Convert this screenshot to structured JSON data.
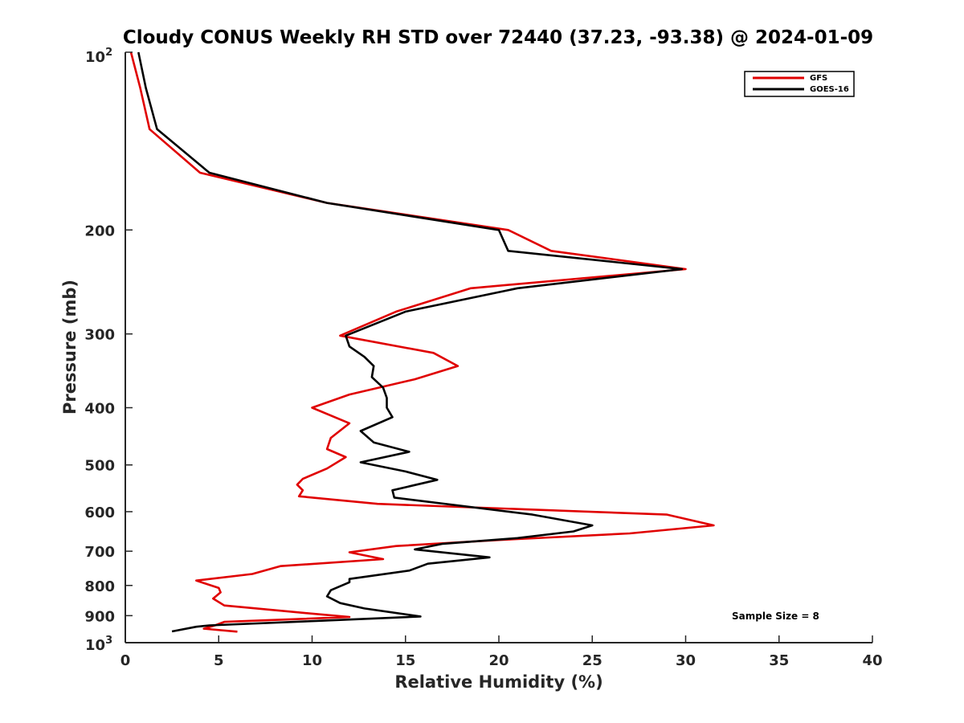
{
  "chart_data": {
    "type": "line",
    "title": "Cloudy CONUS Weekly RH STD over 72440 (37.23, -93.38) @ 2024-01-09",
    "xlabel": "Relative Humidity (%)",
    "ylabel": "Pressure (mb)",
    "xlim": [
      0,
      40
    ],
    "ylim": [
      100,
      1000
    ],
    "y_scale": "log",
    "y_reversed": true,
    "grid": false,
    "legend_position": "top-right",
    "x_ticks": [
      0,
      5,
      10,
      15,
      20,
      25,
      30,
      35,
      40
    ],
    "x_tick_labels": [
      "0",
      "5",
      "10",
      "15",
      "20",
      "25",
      "30",
      "35",
      "40"
    ],
    "y_ticks": [
      200,
      300,
      400,
      500,
      600,
      700,
      800,
      900
    ],
    "y_tick_labels": [
      "200",
      "300",
      "400",
      "500",
      "600",
      "700",
      "800",
      "900"
    ],
    "y_top_label": {
      "base": "10",
      "exp": "2"
    },
    "y_bottom_label": {
      "base": "10",
      "exp": "3"
    },
    "series": [
      {
        "name": "GFS",
        "color": "#e00000",
        "points": [
          [
            0.3,
            100
          ],
          [
            0.8,
            115
          ],
          [
            1.3,
            135
          ],
          [
            4.0,
            160
          ],
          [
            10.8,
            180
          ],
          [
            20.5,
            200
          ],
          [
            22.8,
            217
          ],
          [
            30.0,
            233
          ],
          [
            18.5,
            251
          ],
          [
            14.5,
            275
          ],
          [
            11.5,
            302
          ],
          [
            16.5,
            323
          ],
          [
            17.8,
            340
          ],
          [
            15.5,
            358
          ],
          [
            12.0,
            380
          ],
          [
            10.0,
            400
          ],
          [
            12.0,
            425
          ],
          [
            11.0,
            450
          ],
          [
            10.8,
            470
          ],
          [
            11.8,
            485
          ],
          [
            10.8,
            507
          ],
          [
            9.5,
            528
          ],
          [
            9.2,
            540
          ],
          [
            9.5,
            552
          ],
          [
            9.3,
            565
          ],
          [
            13.5,
            582
          ],
          [
            29.0,
            607
          ],
          [
            31.5,
            633
          ],
          [
            27.0,
            653
          ],
          [
            20.0,
            670
          ],
          [
            14.5,
            686
          ],
          [
            12.0,
            703
          ],
          [
            13.8,
            722
          ],
          [
            8.3,
            742
          ],
          [
            6.8,
            765
          ],
          [
            3.8,
            785
          ],
          [
            5.0,
            808
          ],
          [
            5.1,
            822
          ],
          [
            4.7,
            842
          ],
          [
            5.3,
            865
          ],
          [
            9.5,
            890
          ],
          [
            12.0,
            905
          ],
          [
            5.3,
            922
          ],
          [
            4.8,
            935
          ],
          [
            4.2,
            947
          ],
          [
            6.0,
            958
          ]
        ]
      },
      {
        "name": "GOES-16",
        "color": "#000000",
        "points": [
          [
            0.7,
            100
          ],
          [
            1.1,
            115
          ],
          [
            1.7,
            135
          ],
          [
            4.5,
            160
          ],
          [
            10.8,
            180
          ],
          [
            20.0,
            200
          ],
          [
            20.5,
            217
          ],
          [
            29.8,
            233
          ],
          [
            21.0,
            251
          ],
          [
            15.0,
            275
          ],
          [
            11.8,
            302
          ],
          [
            12.0,
            315
          ],
          [
            12.8,
            328
          ],
          [
            13.3,
            340
          ],
          [
            13.2,
            355
          ],
          [
            13.8,
            370
          ],
          [
            14.0,
            385
          ],
          [
            14.0,
            400
          ],
          [
            14.3,
            415
          ],
          [
            12.6,
            438
          ],
          [
            13.3,
            458
          ],
          [
            15.2,
            475
          ],
          [
            12.6,
            495
          ],
          [
            15.0,
            513
          ],
          [
            16.7,
            530
          ],
          [
            14.3,
            552
          ],
          [
            14.4,
            568
          ],
          [
            21.8,
            607
          ],
          [
            25.0,
            633
          ],
          [
            24.0,
            648
          ],
          [
            21.0,
            665
          ],
          [
            17.0,
            680
          ],
          [
            15.5,
            695
          ],
          [
            19.5,
            717
          ],
          [
            16.2,
            735
          ],
          [
            15.2,
            755
          ],
          [
            12.0,
            780
          ],
          [
            12.0,
            790
          ],
          [
            11.0,
            815
          ],
          [
            10.8,
            835
          ],
          [
            11.5,
            857
          ],
          [
            12.8,
            875
          ],
          [
            15.8,
            903
          ],
          [
            10.5,
            918
          ],
          [
            4.5,
            935
          ],
          [
            3.8,
            940
          ],
          [
            2.5,
            957
          ]
        ]
      }
    ],
    "annotation": "Sample Size = 8"
  }
}
